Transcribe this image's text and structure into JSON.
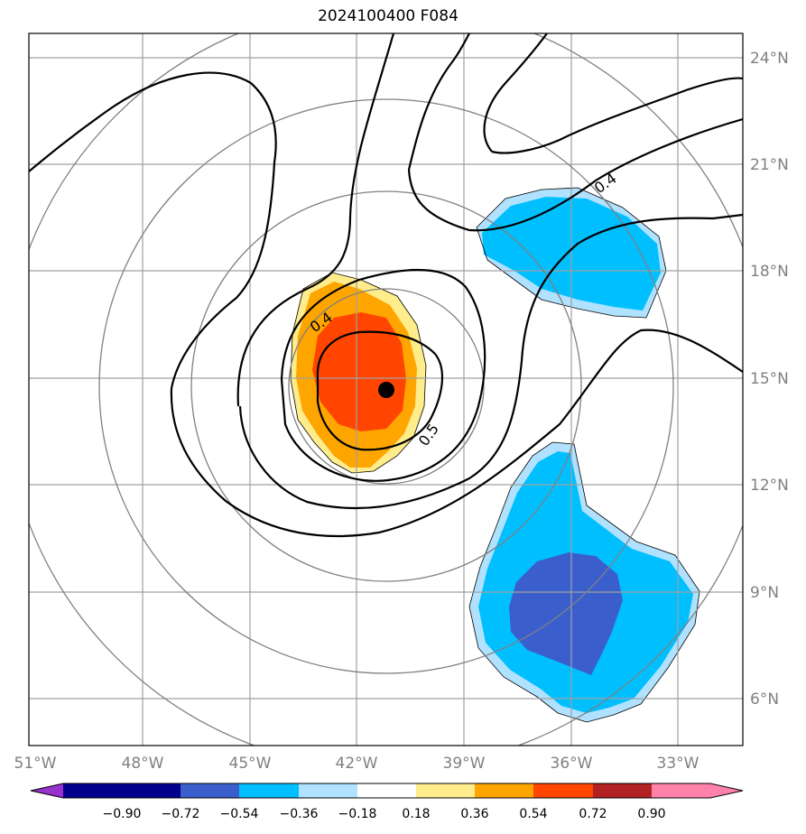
{
  "title": "2024100400 F084",
  "map": {
    "lon_labels": [
      "51°W",
      "48°W",
      "45°W",
      "42°W",
      "39°W",
      "36°W",
      "33°W"
    ],
    "lat_labels": [
      "24°N",
      "21°N",
      "18°N",
      "15°N",
      "12°N",
      "9°N",
      "6°N"
    ],
    "contour_labels": [
      "0.4",
      "0.4",
      "0.5"
    ],
    "center_marker": "black-dot"
  },
  "colorbar": {
    "labels": [
      "−0.90",
      "−0.72",
      "−0.54",
      "−0.36",
      "−0.18",
      "0.18",
      "0.36",
      "0.54",
      "0.72",
      "0.90"
    ],
    "colors": {
      "under": "#9932CC",
      "c1": "#00008B",
      "c2": "#3A5FCD",
      "c3": "#00BFFF",
      "c4": "#B0E2FF",
      "c5": "#FFFFFF",
      "c6": "#FFEC8B",
      "c7": "#FFA500",
      "c8": "#FF4500",
      "c9": "#B22222",
      "over": "#FF82AB"
    }
  }
}
